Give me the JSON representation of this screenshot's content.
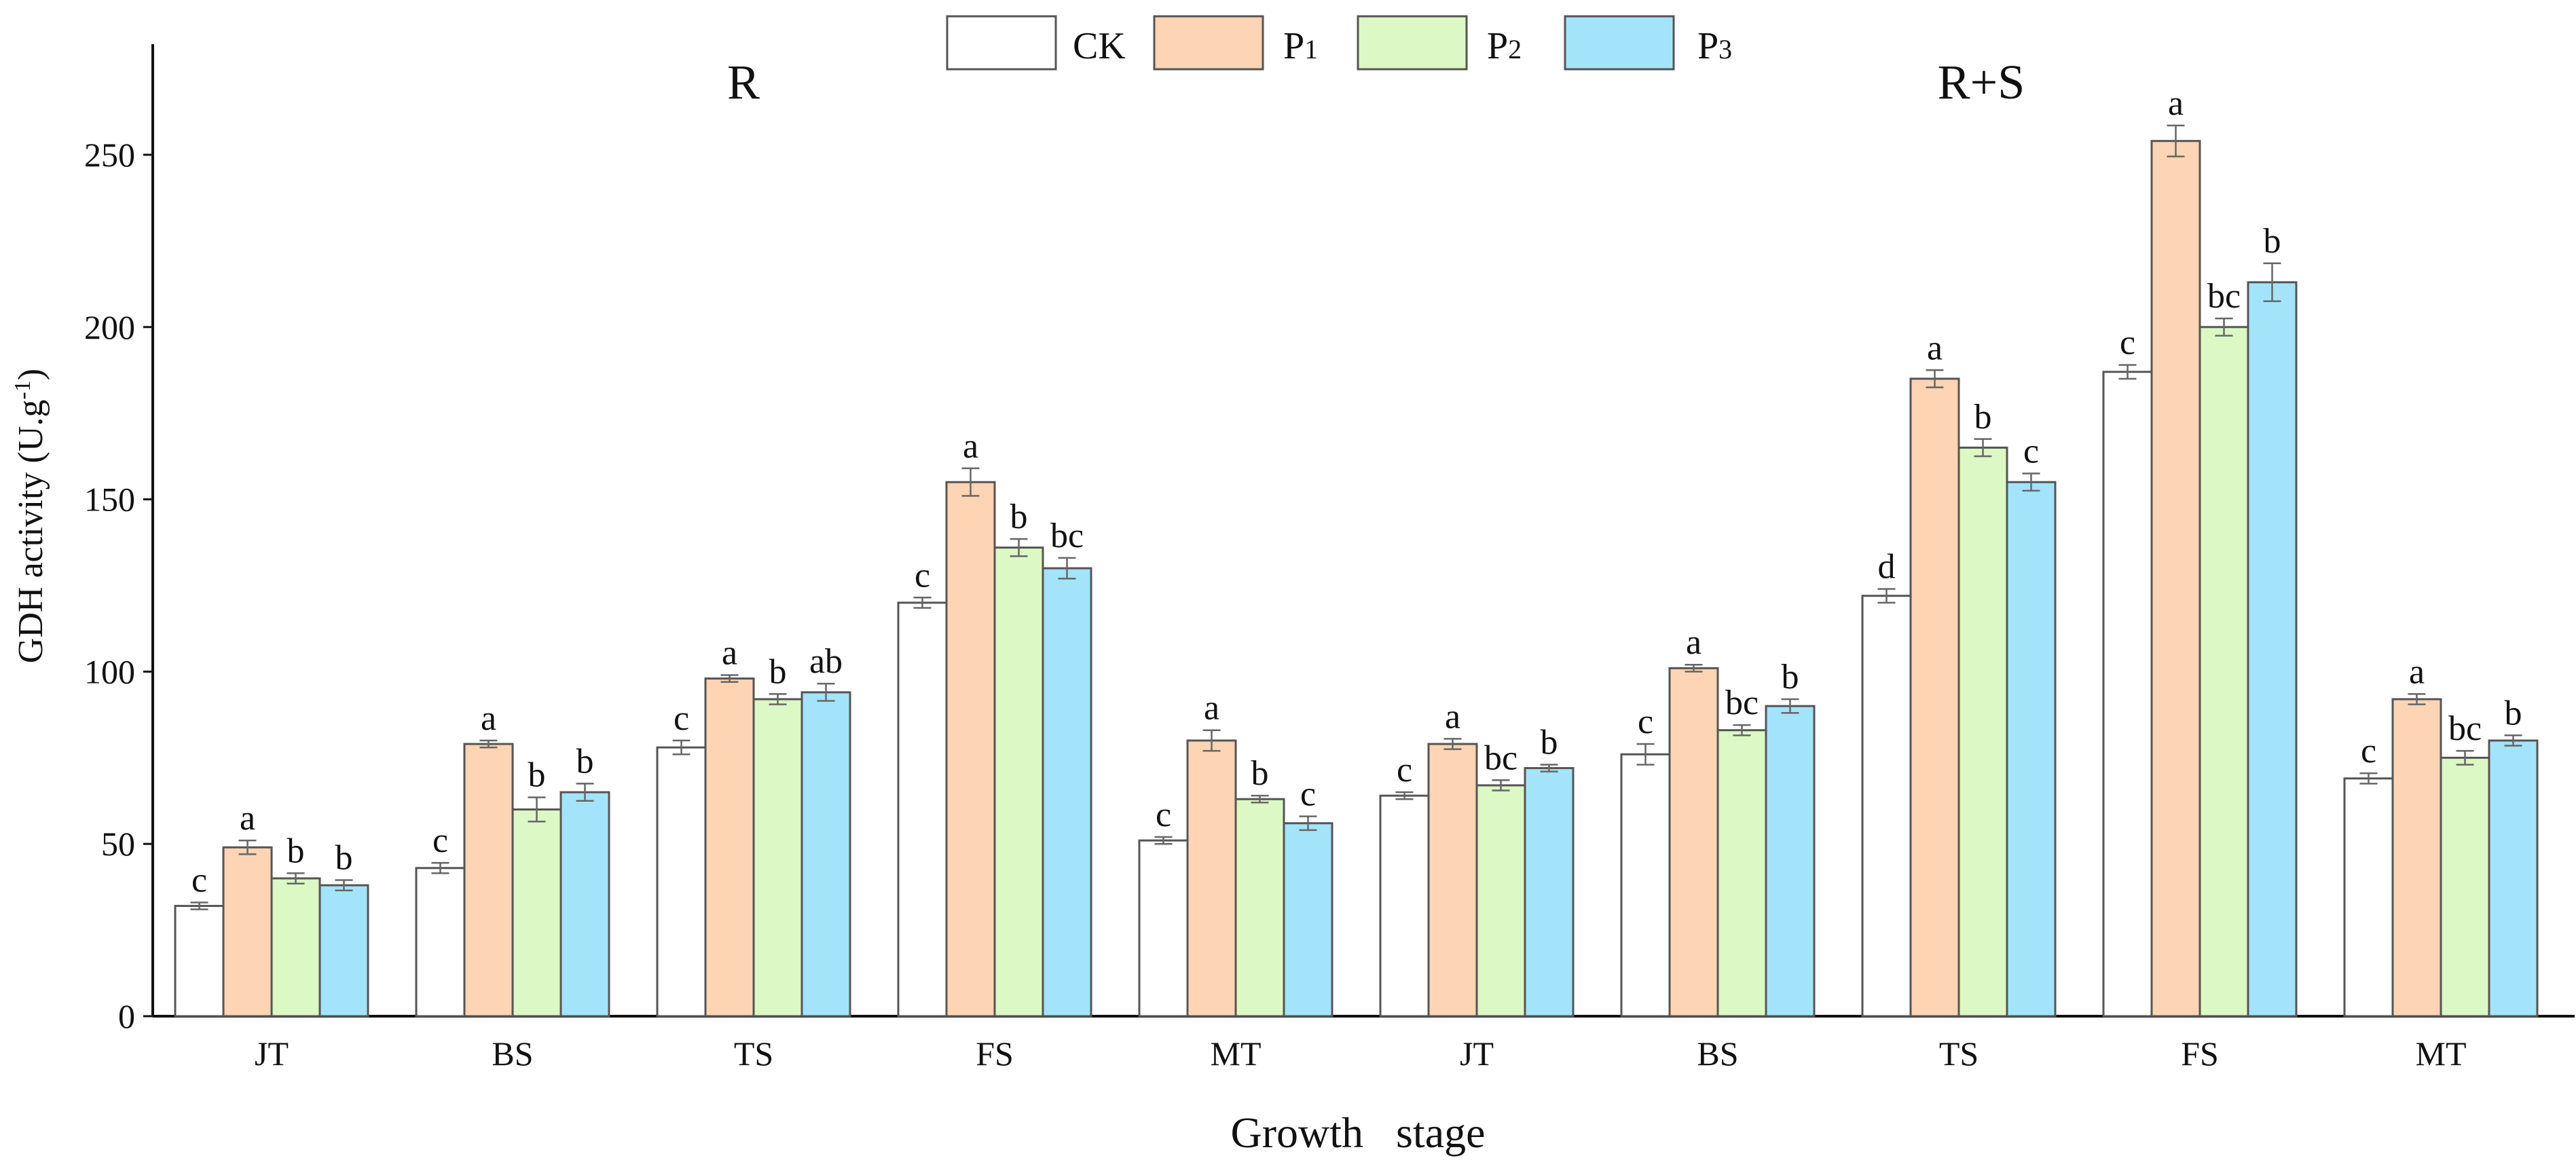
{
  "chart_data": {
    "type": "bar",
    "title": "",
    "xlabel": "Growth   stage",
    "ylabel": "GDH activity (U.g",
    "ylabel_unit_exponent": "-1",
    "ylabel_close": ")",
    "ylim": [
      0,
      280
    ],
    "yticks": [
      0,
      50,
      100,
      150,
      200,
      250
    ],
    "grid": false,
    "legend_position": "top-center",
    "panels": [
      "R",
      "R+S"
    ],
    "categories": [
      "JT",
      "BS",
      "TS",
      "FS",
      "MT",
      "JT",
      "BS",
      "TS",
      "FS",
      "MT"
    ],
    "series": [
      {
        "name": "CK",
        "legend_base": "CK",
        "legend_sub": "",
        "color": "#ffffff",
        "values": [
          32,
          43,
          78,
          120,
          51,
          64,
          76,
          122,
          187,
          69
        ],
        "errors": [
          1,
          1.5,
          2,
          1.5,
          1,
          1,
          3,
          2,
          2,
          1.5
        ],
        "letters": [
          "c",
          "c",
          "c",
          "c",
          "c",
          "c",
          "c",
          "d",
          "c",
          "c"
        ]
      },
      {
        "name": "P1",
        "legend_base": "P",
        "legend_sub": "1",
        "color": "#fdd5b4",
        "values": [
          49,
          79,
          98,
          155,
          80,
          79,
          101,
          185,
          254,
          92
        ],
        "errors": [
          2,
          1,
          1,
          4,
          3,
          1.5,
          1,
          2.5,
          4.5,
          1.5
        ],
        "letters": [
          "a",
          "a",
          "a",
          "a",
          "a",
          "a",
          "a",
          "a",
          "a",
          "a"
        ]
      },
      {
        "name": "P2",
        "legend_base": "P",
        "legend_sub": "2",
        "color": "#dcf8c4",
        "values": [
          40,
          60,
          92,
          136,
          63,
          67,
          83,
          165,
          200,
          75
        ],
        "errors": [
          1.5,
          3.5,
          1.5,
          2.5,
          1,
          1.5,
          1.5,
          2.5,
          2.5,
          2
        ],
        "letters": [
          "b",
          "b",
          "b",
          "b",
          "b",
          "bc",
          "bc",
          "b",
          "bc",
          "bc"
        ]
      },
      {
        "name": "P3",
        "legend_base": "P",
        "legend_sub": "3",
        "color": "#a4e4fb",
        "values": [
          38,
          65,
          94,
          130,
          56,
          72,
          90,
          155,
          213,
          80
        ],
        "errors": [
          1.5,
          2.5,
          2.5,
          3,
          2,
          1,
          2,
          2.5,
          5.5,
          1.5
        ],
        "letters": [
          "b",
          "b",
          "ab",
          "bc",
          "c",
          "b",
          "b",
          "c",
          "b",
          "b"
        ]
      }
    ]
  }
}
